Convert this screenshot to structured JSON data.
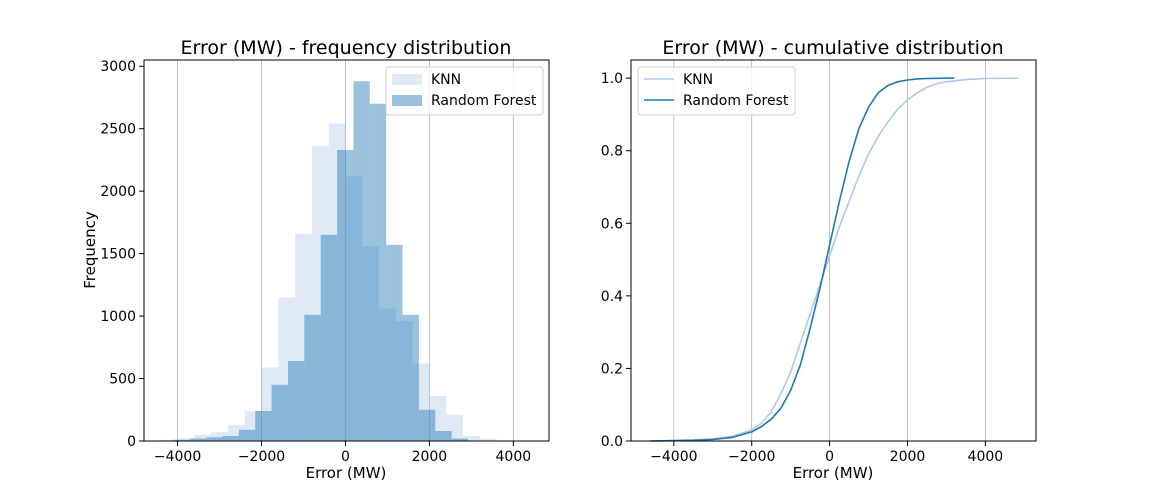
{
  "chart_data": [
    {
      "type": "histogram",
      "title": "Error (MW) - frequency distribution",
      "xlabel": "Error (MW)",
      "ylabel": "Frequency",
      "xlim": [
        -4800,
        4850
      ],
      "ylim": [
        0,
        3050
      ],
      "xticks": [
        -4000,
        -2000,
        0,
        2000,
        4000
      ],
      "yticks": [
        0,
        500,
        1000,
        1500,
        2000,
        2500,
        3000
      ],
      "grid": "vertical",
      "legend_position": "top-right",
      "series": [
        {
          "name": "KNN",
          "color": "#aec7e8",
          "alpha": 0.4,
          "bin_edges": [
            -4400,
            -4000,
            -3600,
            -3200,
            -2800,
            -2400,
            -2000,
            -1600,
            -1200,
            -800,
            -400,
            0,
            400,
            800,
            1200,
            1600,
            2000,
            2400,
            2800,
            3200,
            3600
          ],
          "counts": [
            10,
            20,
            50,
            70,
            130,
            240,
            590,
            1150,
            1660,
            2360,
            2540,
            2120,
            1560,
            1060,
            960,
            620,
            360,
            210,
            40,
            20
          ]
        },
        {
          "name": "Random Forest",
          "color": "#1f77b4",
          "alpha": 0.45,
          "bin_edges": [
            -4100,
            -3710,
            -3320,
            -2930,
            -2540,
            -2150,
            -1760,
            -1370,
            -980,
            -590,
            -200,
            190,
            580,
            970,
            1360,
            1750,
            2140,
            2530,
            2920
          ],
          "counts": [
            10,
            20,
            30,
            40,
            90,
            240,
            450,
            640,
            1010,
            1650,
            2330,
            2880,
            2700,
            1570,
            1010,
            250,
            80,
            20
          ]
        }
      ]
    },
    {
      "type": "line",
      "title": "Error (MW) - cumulative distribution",
      "xlabel": "Error (MW)",
      "ylabel": "",
      "xlim": [
        -5100,
        5300
      ],
      "ylim": [
        0,
        1.05
      ],
      "xticks": [
        -4000,
        -2000,
        0,
        2000,
        4000
      ],
      "yticks": [
        0.0,
        0.2,
        0.4,
        0.6,
        0.8,
        1.0
      ],
      "grid": "vertical",
      "legend_position": "top-left",
      "series": [
        {
          "name": "KNN",
          "color": "#aec7e8",
          "x": [
            -4600,
            -3500,
            -3000,
            -2500,
            -2000,
            -1750,
            -1500,
            -1250,
            -1000,
            -750,
            -500,
            -250,
            0,
            250,
            500,
            750,
            1000,
            1250,
            1500,
            1750,
            2000,
            2250,
            2500,
            2750,
            3000,
            3500,
            4000,
            4850
          ],
          "y": [
            0.0,
            0.003,
            0.006,
            0.013,
            0.03,
            0.05,
            0.08,
            0.13,
            0.19,
            0.27,
            0.35,
            0.43,
            0.51,
            0.59,
            0.66,
            0.73,
            0.79,
            0.84,
            0.88,
            0.915,
            0.94,
            0.96,
            0.975,
            0.985,
            0.99,
            0.996,
            0.999,
            1.0
          ]
        },
        {
          "name": "Random Forest",
          "color": "#1f77b4",
          "x": [
            -4600,
            -3500,
            -3000,
            -2500,
            -2000,
            -1750,
            -1500,
            -1250,
            -1000,
            -750,
            -500,
            -250,
            0,
            250,
            500,
            750,
            1000,
            1250,
            1500,
            1750,
            2000,
            2250,
            2500,
            3200
          ],
          "y": [
            0.0,
            0.002,
            0.004,
            0.01,
            0.025,
            0.04,
            0.06,
            0.09,
            0.14,
            0.21,
            0.31,
            0.42,
            0.54,
            0.66,
            0.77,
            0.86,
            0.92,
            0.96,
            0.98,
            0.99,
            0.995,
            0.998,
            0.999,
            1.0
          ]
        }
      ]
    }
  ]
}
